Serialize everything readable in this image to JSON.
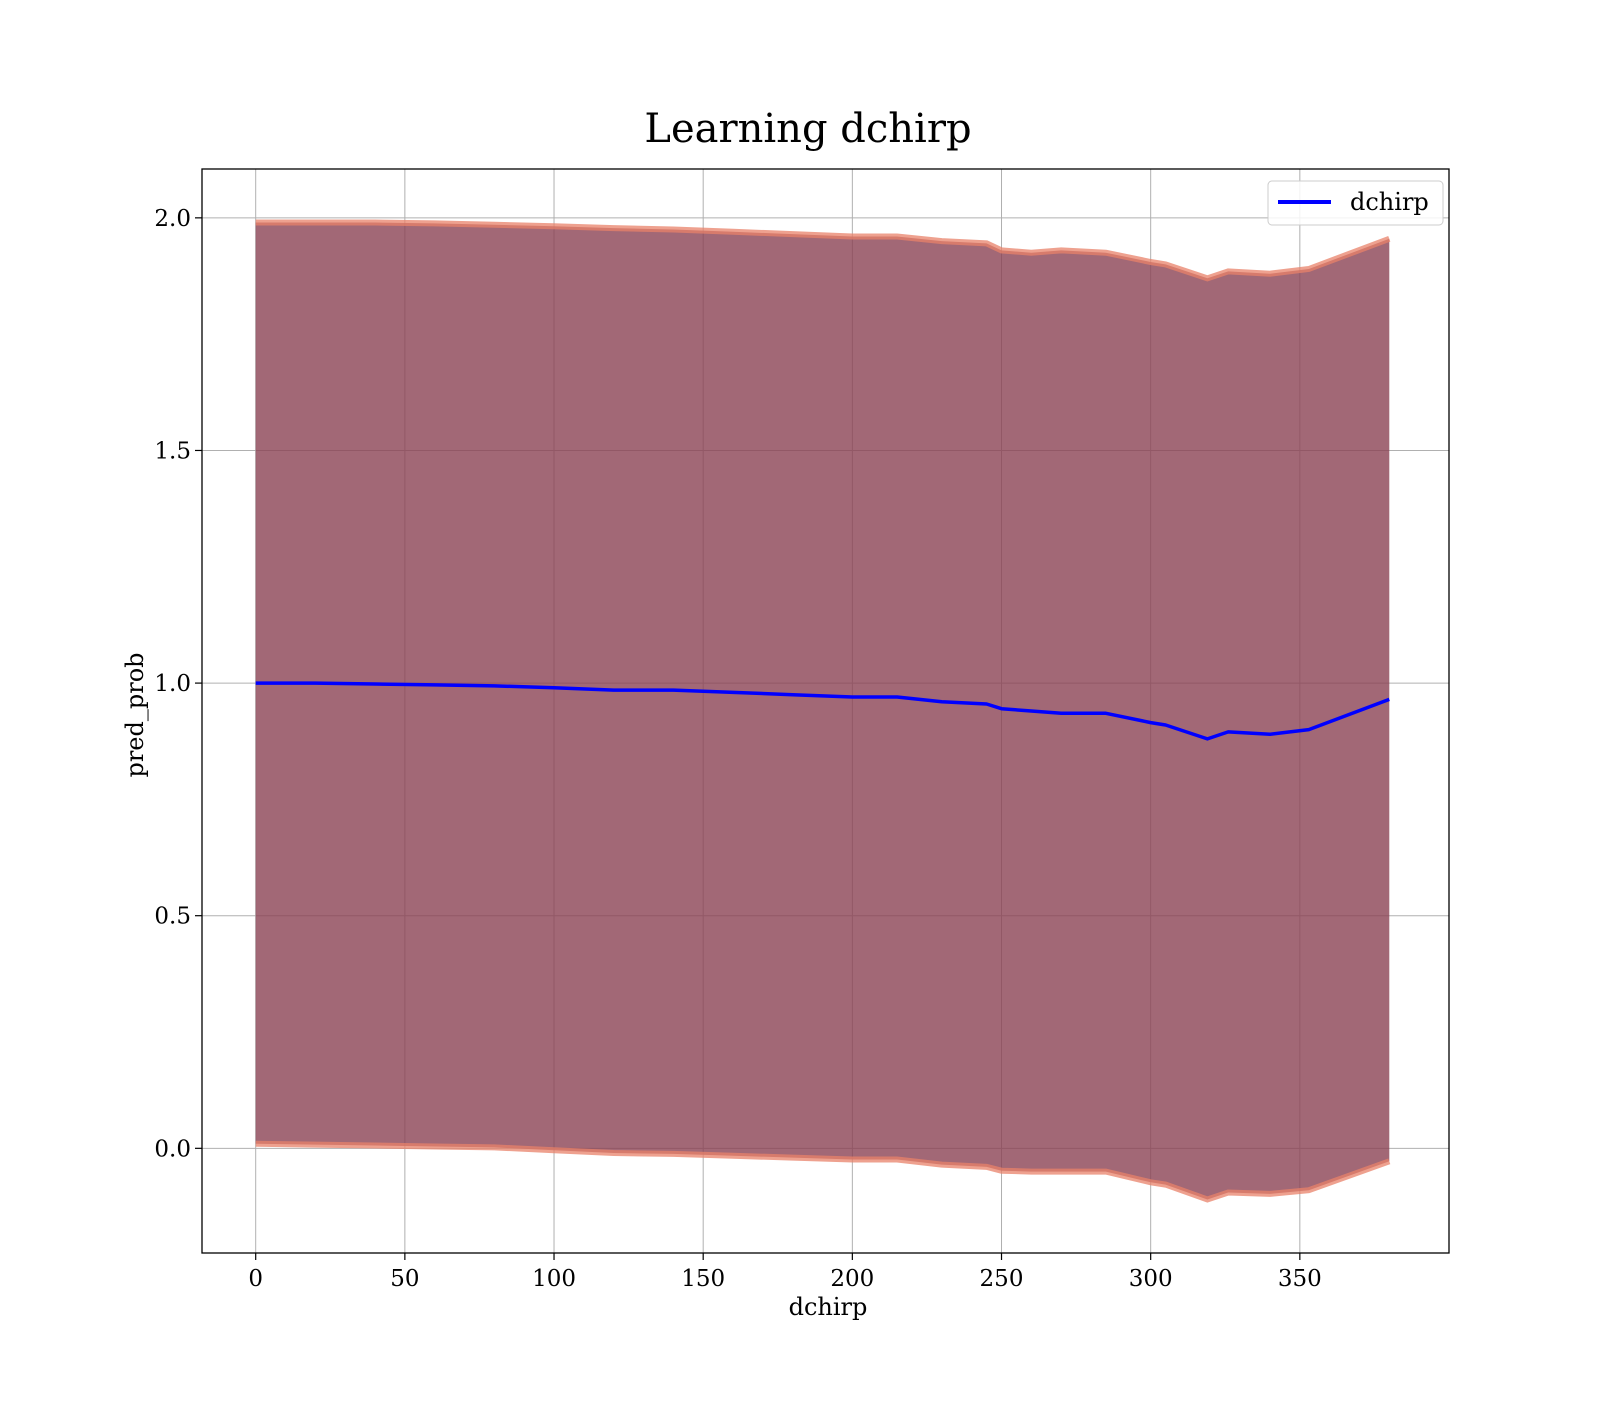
{
  "chart_data": {
    "type": "line",
    "title": "Learning dchirp",
    "xlabel": "dchirp",
    "ylabel": "pred_prob",
    "xlim": [
      -18,
      400
    ],
    "ylim": [
      -0.225,
      2.105
    ],
    "xticks": [
      0,
      50,
      100,
      150,
      200,
      250,
      300,
      350
    ],
    "yticks": [
      0.0,
      0.5,
      1.0,
      1.5,
      2.0
    ],
    "xtick_labels": [
      "0",
      "50",
      "100",
      "150",
      "200",
      "250",
      "300",
      "350"
    ],
    "ytick_labels": [
      "0.0",
      "0.5",
      "1.0",
      "1.5",
      "2.0"
    ],
    "grid": true,
    "legend": {
      "position": "top-right",
      "entries": [
        "dchirp"
      ]
    },
    "colors": {
      "line": "#0000ff",
      "band": "#8b4254",
      "band_edge": "#e8826a",
      "grid": "#b0b0b0"
    },
    "x": [
      0,
      20,
      40,
      60,
      80,
      100,
      120,
      140,
      160,
      180,
      200,
      215,
      230,
      245,
      250,
      260,
      270,
      285,
      300,
      305,
      319,
      326,
      340,
      353,
      380
    ],
    "series": [
      {
        "name": "dchirp",
        "values": [
          1.0,
          1.0,
          0.998,
          0.996,
          0.994,
          0.99,
          0.985,
          0.985,
          0.98,
          0.975,
          0.97,
          0.97,
          0.96,
          0.955,
          0.945,
          0.94,
          0.935,
          0.935,
          0.915,
          0.91,
          0.88,
          0.895,
          0.89,
          0.9,
          0.965
        ],
        "upper": [
          1.99,
          1.99,
          1.99,
          1.988,
          1.985,
          1.982,
          1.978,
          1.975,
          1.97,
          1.965,
          1.96,
          1.96,
          1.95,
          1.945,
          1.93,
          1.925,
          1.93,
          1.925,
          1.905,
          1.9,
          1.87,
          1.885,
          1.88,
          1.89,
          1.955
        ],
        "lower": [
          0.01,
          0.008,
          0.006,
          0.004,
          0.002,
          -0.004,
          -0.01,
          -0.012,
          -0.016,
          -0.02,
          -0.024,
          -0.024,
          -0.035,
          -0.04,
          -0.048,
          -0.05,
          -0.05,
          -0.05,
          -0.073,
          -0.078,
          -0.11,
          -0.095,
          -0.098,
          -0.09,
          -0.028
        ]
      }
    ]
  }
}
